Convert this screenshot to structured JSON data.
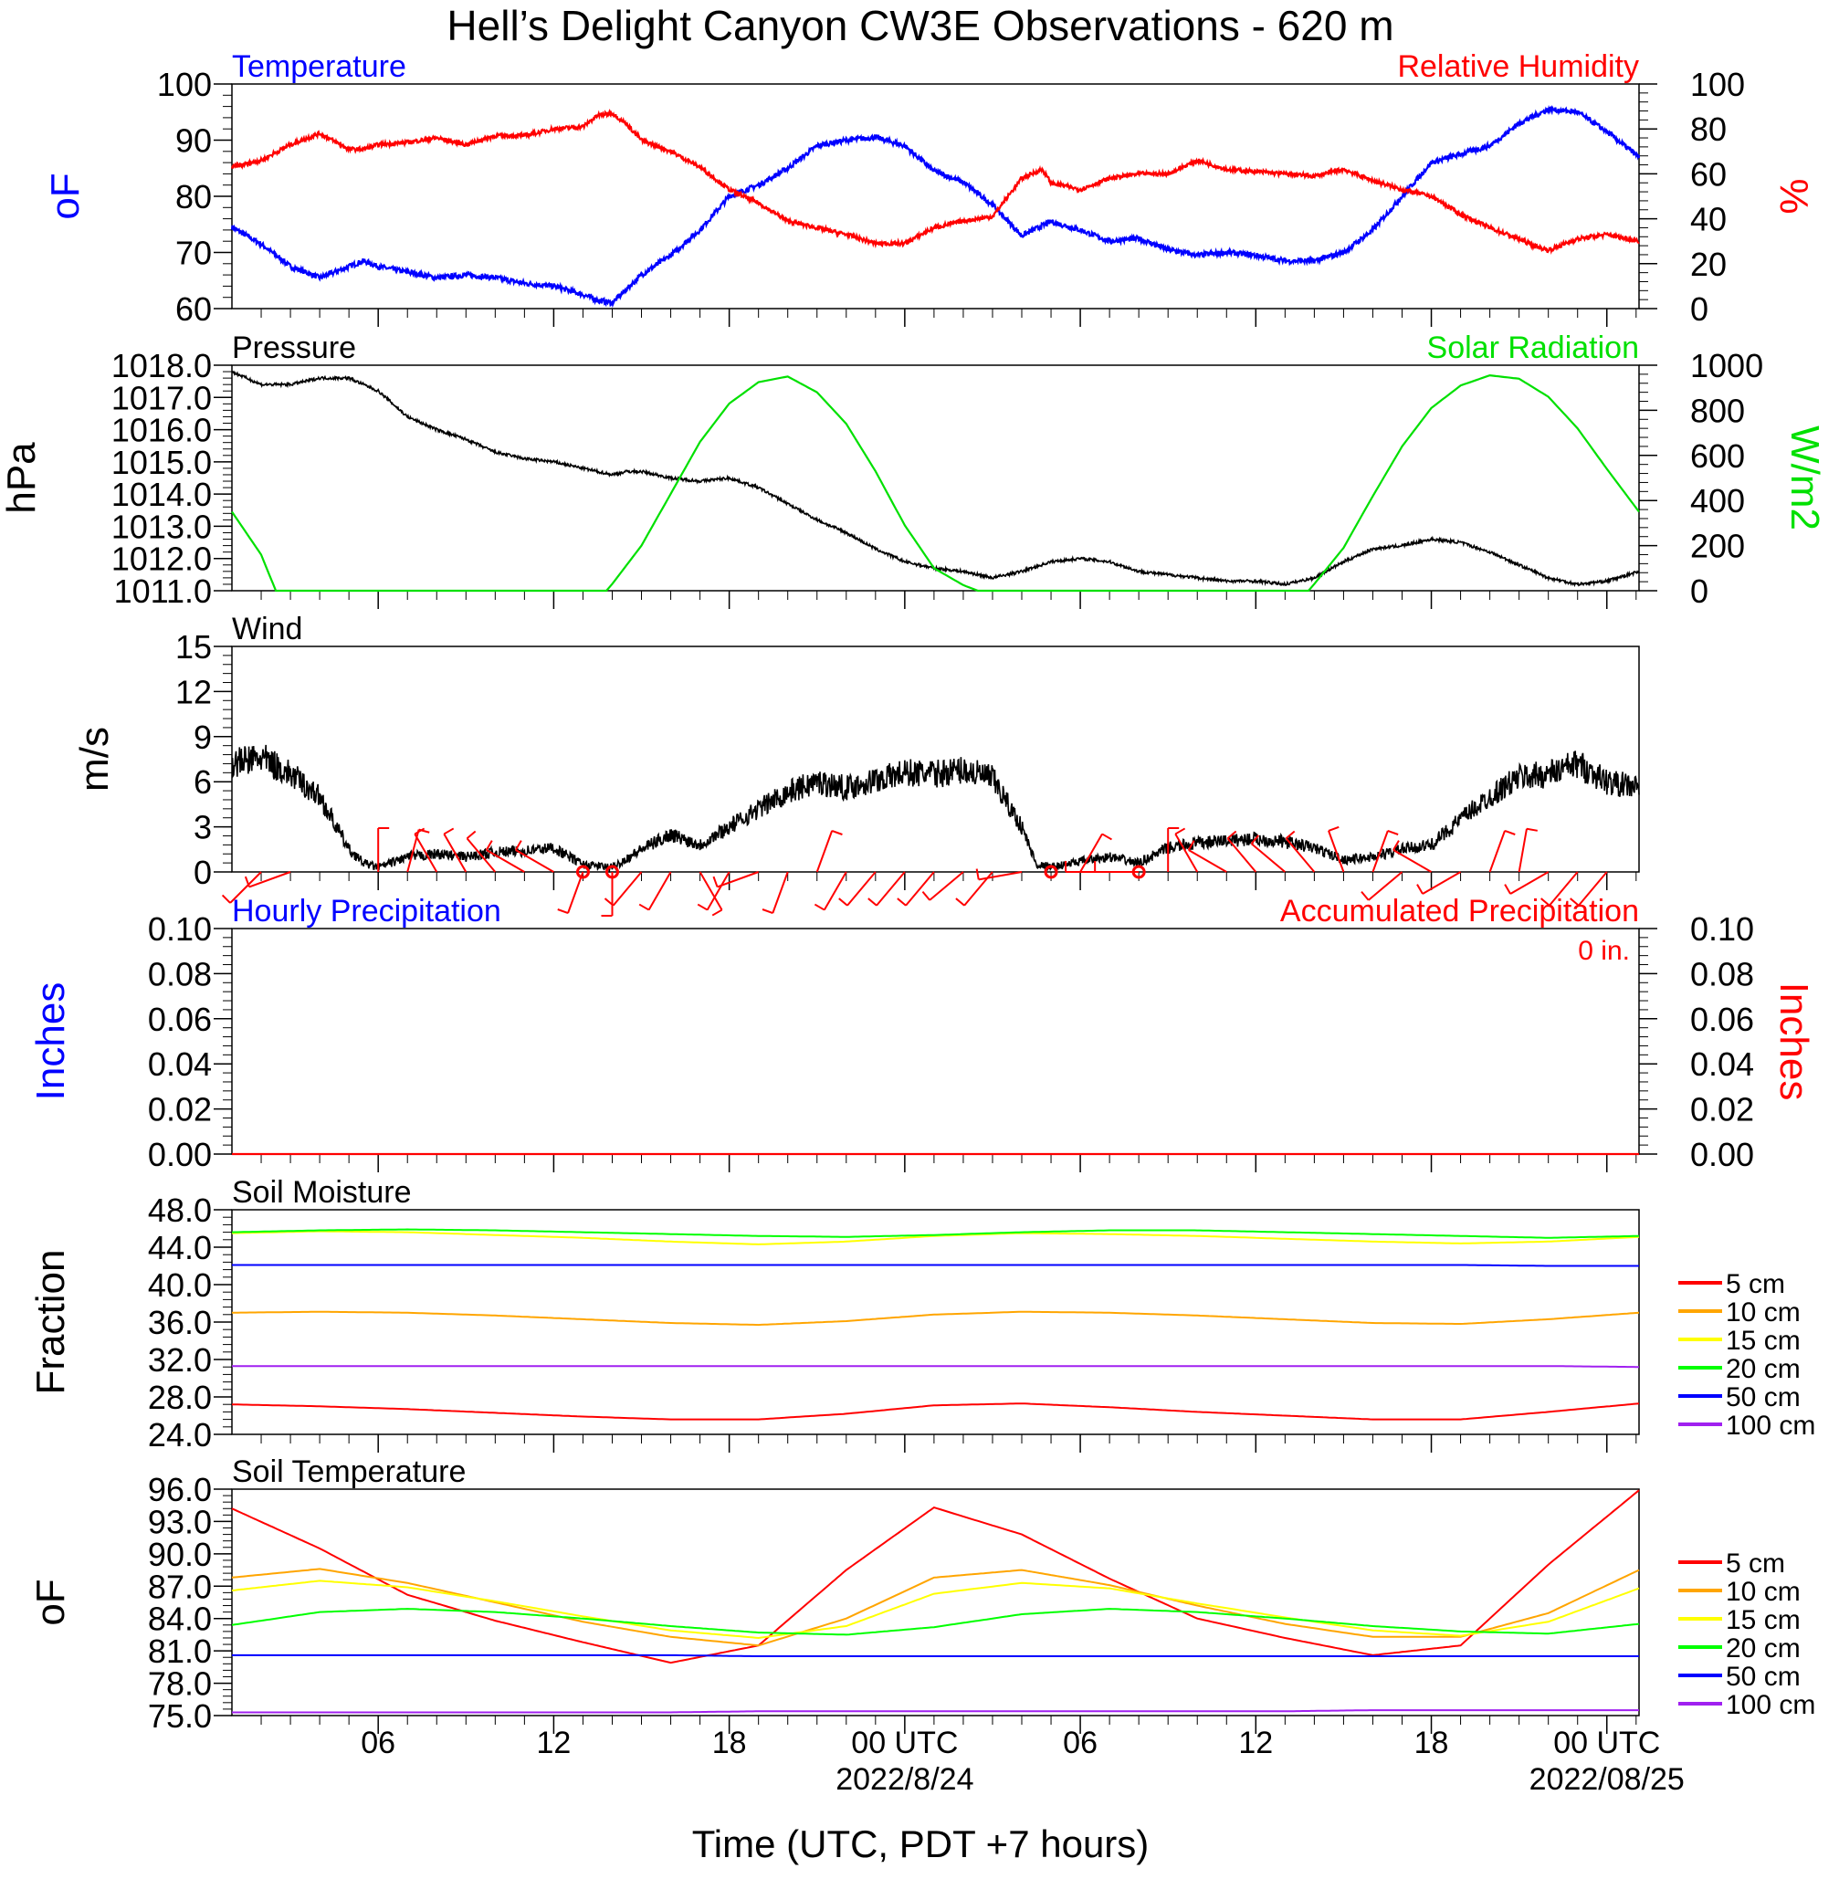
{
  "title": "Hell’s Delight Canyon CW3E Observations - 620 m",
  "colors": {
    "temperature": "#0000ff",
    "humidity": "#ff0000",
    "pressure": "#000000",
    "solar": "#00e000",
    "wind": "#000000",
    "barb": "#ff0000",
    "hourly_precip": "#0000ff",
    "accum_precip": "#ff0000",
    "depth_colors": [
      "#ff0000",
      "#ffa500",
      "#ffff00",
      "#00ff00",
      "#0000ff",
      "#a020f0"
    ]
  },
  "time_axis": {
    "title": "Time (UTC, PDT +7 hours)",
    "range_hours_utc": [
      1,
      49.1
    ],
    "tick_labels": [
      "06",
      "12",
      "18",
      "00 UTC",
      "06",
      "12",
      "18",
      "00 UTC"
    ],
    "tick_hours": [
      6,
      12,
      18,
      24,
      30,
      36,
      42,
      48
    ],
    "date_labels": [
      "2022/8/24",
      "2022/08/25"
    ],
    "date_label_hours": [
      24,
      48
    ]
  },
  "chart_data": [
    {
      "type": "line",
      "panel": "temp_rh",
      "left_title": "Temperature",
      "right_title": "Relative Humidity",
      "ylabel": "oF",
      "y2label": "%",
      "ylim": [
        60,
        100
      ],
      "y2lim": [
        0,
        100
      ],
      "ytick_labels": [
        "60",
        "70",
        "80",
        "90",
        "100"
      ],
      "y2tick_labels": [
        "0",
        "20",
        "40",
        "60",
        "80",
        "100"
      ],
      "series": [
        {
          "key": "temperature",
          "axis": "left",
          "x": [
            1,
            2,
            3,
            4,
            5,
            5.5,
            6,
            7,
            8,
            9,
            10,
            11,
            12,
            13,
            13.5,
            14,
            14.5,
            15,
            16,
            17,
            18,
            19,
            20,
            21,
            22,
            23,
            24,
            25,
            26,
            27,
            28,
            29,
            30,
            31,
            32,
            33,
            34,
            35,
            36,
            37,
            38,
            39,
            40,
            41,
            42,
            43,
            44,
            45,
            46,
            47,
            48,
            49.1
          ],
          "values": [
            74.5,
            71.5,
            67.5,
            65.5,
            67.5,
            68.5,
            67.5,
            66.5,
            65.5,
            66,
            65.5,
            64.5,
            64,
            62.5,
            61.5,
            61,
            63.5,
            66,
            69.5,
            74,
            80,
            82,
            85,
            89,
            90,
            90.5,
            89,
            84.5,
            82.5,
            78.5,
            73,
            75.5,
            74,
            72,
            72.5,
            70.5,
            69.5,
            70,
            69.5,
            68.5,
            68.5,
            70,
            74,
            80,
            86,
            87.5,
            89,
            93,
            95.5,
            95,
            91.5,
            87
          ]
        },
        {
          "key": "humidity",
          "axis": "right",
          "x": [
            1,
            2,
            3,
            4,
            5,
            5.5,
            6,
            7,
            8,
            9,
            10,
            11,
            12,
            13,
            13.5,
            14,
            14.5,
            15,
            16,
            17,
            18,
            19,
            20,
            21,
            22,
            23,
            24,
            25,
            26,
            27,
            28,
            28.7,
            29,
            30,
            31,
            32,
            33,
            34,
            35,
            36,
            37,
            38,
            39,
            40,
            41,
            42,
            43,
            44,
            45,
            45.5,
            46,
            47,
            48,
            49.1
          ],
          "values": [
            63,
            66,
            73,
            78,
            71,
            71,
            73,
            74,
            76,
            73,
            77,
            77,
            80,
            81,
            86,
            87,
            82,
            75,
            70,
            63,
            53,
            47,
            39,
            36,
            33,
            29,
            29,
            36,
            39,
            41,
            58,
            62,
            56,
            53,
            58,
            60,
            60,
            66,
            62,
            61,
            60,
            59,
            62,
            57,
            53,
            50,
            42,
            36,
            31,
            28,
            26,
            31,
            33,
            30
          ]
        }
      ]
    },
    {
      "type": "line",
      "panel": "pressure_solar",
      "left_title": "Pressure",
      "right_title": "Solar Radiation",
      "ylabel": "hPa",
      "y2label": "W/m2",
      "ylim": [
        1011,
        1018
      ],
      "y2lim": [
        0,
        1000
      ],
      "ytick_labels": [
        "1011.0",
        "1012.0",
        "1013.0",
        "1014.0",
        "1015.0",
        "1016.0",
        "1017.0",
        "1018.0"
      ],
      "y2tick_labels": [
        "0",
        "200",
        "400",
        "600",
        "800",
        "1000"
      ],
      "series": [
        {
          "key": "pressure",
          "axis": "left",
          "x": [
            1,
            2,
            3,
            4,
            5,
            6,
            7,
            8,
            9,
            10,
            11,
            12,
            13,
            14,
            14.5,
            15,
            16,
            17,
            18,
            19,
            20,
            21,
            22,
            23,
            24,
            25,
            26,
            27,
            28,
            29,
            30,
            31,
            32,
            33,
            34,
            35,
            36,
            37,
            38,
            39,
            40,
            41,
            42,
            43,
            44,
            45,
            46,
            47,
            48,
            49.1
          ],
          "values": [
            1017.8,
            1017.4,
            1017.4,
            1017.6,
            1017.6,
            1017.2,
            1016.4,
            1016.0,
            1015.7,
            1015.3,
            1015.1,
            1015.0,
            1014.8,
            1014.6,
            1014.7,
            1014.7,
            1014.5,
            1014.4,
            1014.5,
            1014.2,
            1013.7,
            1013.2,
            1012.8,
            1012.3,
            1011.9,
            1011.7,
            1011.6,
            1011.4,
            1011.6,
            1011.9,
            1012.0,
            1011.9,
            1011.6,
            1011.5,
            1011.4,
            1011.3,
            1011.3,
            1011.2,
            1011.4,
            1011.9,
            1012.3,
            1012.4,
            1012.6,
            1012.5,
            1012.2,
            1011.8,
            1011.4,
            1011.2,
            1011.3,
            1011.6
          ]
        },
        {
          "key": "solar",
          "axis": "right",
          "x": [
            1,
            2,
            2.5,
            3,
            4,
            5,
            6,
            7,
            8,
            9,
            10,
            11,
            12,
            13,
            13.8,
            14,
            15,
            16,
            17,
            18,
            19,
            20,
            21,
            22,
            23,
            24,
            25,
            26,
            26.5,
            27,
            28,
            29,
            30,
            31,
            32,
            33,
            34,
            35,
            36,
            37,
            37.8,
            38,
            39,
            40,
            41,
            42,
            43,
            44,
            45,
            46,
            47,
            48,
            49.1
          ],
          "values": [
            350,
            160,
            0,
            0,
            0,
            0,
            0,
            0,
            0,
            0,
            0,
            0,
            0,
            0,
            0,
            30,
            200,
            430,
            660,
            830,
            925,
            950,
            880,
            740,
            530,
            290,
            100,
            25,
            0,
            0,
            0,
            0,
            0,
            0,
            0,
            0,
            0,
            0,
            0,
            0,
            0,
            30,
            190,
            420,
            640,
            810,
            910,
            955,
            940,
            860,
            720,
            540,
            350
          ]
        }
      ]
    },
    {
      "type": "line",
      "panel": "wind",
      "left_title": "Wind",
      "ylabel": "m/s",
      "ylim": [
        0,
        15
      ],
      "ytick_labels": [
        "0",
        "3",
        "6",
        "9",
        "12",
        "15"
      ],
      "series": [
        {
          "key": "wind",
          "axis": "left",
          "x": [
            1,
            2,
            3,
            4,
            5,
            5.5,
            6,
            7,
            8,
            9,
            10,
            11,
            12,
            13,
            14,
            15,
            16,
            17,
            18,
            19,
            20,
            21,
            22,
            23,
            24,
            25,
            26,
            27,
            28,
            28.5,
            29,
            30,
            31,
            32,
            33,
            34,
            35,
            36,
            37,
            38,
            39,
            40,
            41,
            42,
            43,
            44,
            45,
            46,
            47,
            48,
            49.1
          ],
          "values": [
            7.2,
            7.6,
            6.5,
            5.0,
            1.5,
            0.6,
            0.3,
            1.0,
            1.2,
            1.0,
            1.3,
            1.4,
            1.6,
            0.5,
            0.3,
            1.5,
            2.5,
            1.8,
            3.0,
            4.2,
            5.3,
            6.0,
            5.6,
            6.1,
            6.6,
            6.5,
            6.8,
            6.2,
            3.0,
            0.5,
            0.3,
            0.7,
            1.0,
            0.6,
            1.6,
            1.9,
            2.1,
            2.2,
            2.0,
            1.6,
            0.8,
            1.0,
            1.5,
            1.8,
            3.5,
            5.0,
            6.3,
            6.5,
            7.2,
            6.0,
            5.6
          ]
        }
      ],
      "calm_markers_hours": [
        13,
        14,
        29,
        32
      ],
      "barbs": {
        "hours": [
          2,
          3,
          6,
          7,
          8,
          9,
          10,
          11,
          12,
          13,
          14,
          15,
          16,
          17,
          18,
          19,
          20,
          21,
          22,
          23,
          24,
          25,
          26,
          27,
          28,
          30,
          31,
          32,
          33,
          34,
          35,
          36,
          37,
          38,
          39,
          40,
          41,
          42,
          43,
          44,
          45,
          46,
          47,
          48
        ],
        "direction_deg": [
          225,
          250,
          0,
          15,
          330,
          330,
          320,
          300,
          300,
          200,
          180,
          220,
          210,
          150,
          210,
          250,
          200,
          20,
          210,
          220,
          220,
          220,
          230,
          220,
          260,
          30,
          270,
          270,
          0,
          330,
          300,
          320,
          310,
          320,
          340,
          20,
          230,
          300,
          240,
          20,
          10,
          240,
          220,
          220
        ]
      }
    },
    {
      "type": "line",
      "panel": "precip",
      "left_title": "Hourly Precipitation",
      "right_title": "Accumulated Precipitation",
      "total_label": "0 in.",
      "ylabel": "Inches",
      "y2label": "Inches",
      "ylim": [
        0,
        0.1
      ],
      "y2lim": [
        0,
        0.1
      ],
      "ytick_labels": [
        "0.00",
        "0.02",
        "0.04",
        "0.06",
        "0.08",
        "0.10"
      ],
      "y2tick_labels": [
        "0.00",
        "0.02",
        "0.04",
        "0.06",
        "0.08",
        "0.10"
      ],
      "series": [
        {
          "key": "accum_precip",
          "axis": "right",
          "x": [
            1,
            49.1
          ],
          "values": [
            0,
            0
          ]
        }
      ]
    },
    {
      "type": "line",
      "panel": "soil_moisture",
      "left_title": "Soil Moisture",
      "ylabel": "Fraction",
      "ylim": [
        24,
        48
      ],
      "ytick_labels": [
        "24.0",
        "28.0",
        "32.0",
        "36.0",
        "40.0",
        "44.0",
        "48.0"
      ],
      "legend": [
        "5 cm",
        "10 cm",
        "15 cm",
        "20 cm",
        "50 cm",
        "100 cm"
      ],
      "x": [
        1,
        4,
        7,
        10,
        13,
        16,
        19,
        22,
        25,
        28,
        31,
        34,
        37,
        40,
        43,
        46,
        49.1
      ],
      "series": [
        {
          "name": "5 cm",
          "values": [
            27.2,
            27.0,
            26.7,
            26.3,
            25.9,
            25.6,
            25.6,
            26.2,
            27.1,
            27.3,
            26.9,
            26.4,
            26.0,
            25.6,
            25.6,
            26.4,
            27.3
          ]
        },
        {
          "name": "10 cm",
          "values": [
            37.0,
            37.1,
            37.0,
            36.7,
            36.3,
            35.9,
            35.7,
            36.1,
            36.8,
            37.1,
            37.0,
            36.7,
            36.3,
            35.9,
            35.8,
            36.3,
            37.0
          ]
        },
        {
          "name": "15 cm",
          "values": [
            45.5,
            45.7,
            45.6,
            45.3,
            45.0,
            44.6,
            44.3,
            44.6,
            45.2,
            45.5,
            45.4,
            45.2,
            44.9,
            44.6,
            44.4,
            44.6,
            45.1
          ]
        },
        {
          "name": "20 cm",
          "values": [
            45.6,
            45.8,
            45.9,
            45.8,
            45.6,
            45.4,
            45.2,
            45.1,
            45.3,
            45.6,
            45.8,
            45.8,
            45.6,
            45.4,
            45.2,
            45.0,
            45.2
          ]
        },
        {
          "name": "50 cm",
          "values": [
            42.1,
            42.1,
            42.1,
            42.1,
            42.1,
            42.1,
            42.1,
            42.1,
            42.1,
            42.1,
            42.1,
            42.1,
            42.1,
            42.1,
            42.1,
            42.0,
            42.0
          ]
        },
        {
          "name": "100 cm",
          "values": [
            31.3,
            31.3,
            31.3,
            31.3,
            31.3,
            31.3,
            31.3,
            31.3,
            31.3,
            31.3,
            31.3,
            31.3,
            31.3,
            31.3,
            31.3,
            31.3,
            31.2
          ]
        }
      ]
    },
    {
      "type": "line",
      "panel": "soil_temperature",
      "left_title": "Soil Temperature",
      "ylabel": "oF",
      "ylim": [
        75,
        96
      ],
      "ytick_labels": [
        "75.0",
        "78.0",
        "81.0",
        "84.0",
        "87.0",
        "90.0",
        "93.0",
        "96.0"
      ],
      "legend": [
        "5 cm",
        "10 cm",
        "15 cm",
        "20 cm",
        "50 cm",
        "100 cm"
      ],
      "x": [
        1,
        4,
        7,
        10,
        13,
        16,
        19,
        22,
        25,
        28,
        31,
        34,
        37,
        40,
        43,
        46,
        49.1
      ],
      "series": [
        {
          "name": "5 cm",
          "values": [
            94.2,
            90.5,
            86.2,
            83.8,
            81.8,
            79.9,
            81.5,
            88.5,
            94.3,
            91.8,
            87.7,
            84.0,
            82.2,
            80.6,
            81.5,
            89.0,
            95.9
          ]
        },
        {
          "name": "10 cm",
          "values": [
            87.8,
            88.6,
            87.3,
            85.5,
            83.7,
            82.3,
            81.5,
            84.0,
            87.8,
            88.5,
            87.1,
            85.2,
            83.5,
            82.3,
            82.3,
            84.5,
            88.5
          ]
        },
        {
          "name": "15 cm",
          "values": [
            86.6,
            87.5,
            86.9,
            85.6,
            84.2,
            82.9,
            82.2,
            83.3,
            86.3,
            87.3,
            86.8,
            85.4,
            84.1,
            82.9,
            82.4,
            83.7,
            86.8
          ]
        },
        {
          "name": "20 cm",
          "values": [
            83.4,
            84.6,
            84.9,
            84.6,
            84.0,
            83.3,
            82.7,
            82.5,
            83.2,
            84.4,
            84.9,
            84.6,
            84.0,
            83.3,
            82.8,
            82.6,
            83.5
          ]
        },
        {
          "name": "50 cm",
          "values": [
            80.6,
            80.6,
            80.6,
            80.6,
            80.6,
            80.6,
            80.5,
            80.5,
            80.5,
            80.5,
            80.5,
            80.5,
            80.5,
            80.5,
            80.5,
            80.5,
            80.5
          ]
        },
        {
          "name": "100 cm",
          "values": [
            75.3,
            75.3,
            75.3,
            75.3,
            75.3,
            75.3,
            75.4,
            75.4,
            75.4,
            75.4,
            75.4,
            75.4,
            75.4,
            75.5,
            75.5,
            75.5,
            75.5
          ]
        }
      ]
    }
  ]
}
